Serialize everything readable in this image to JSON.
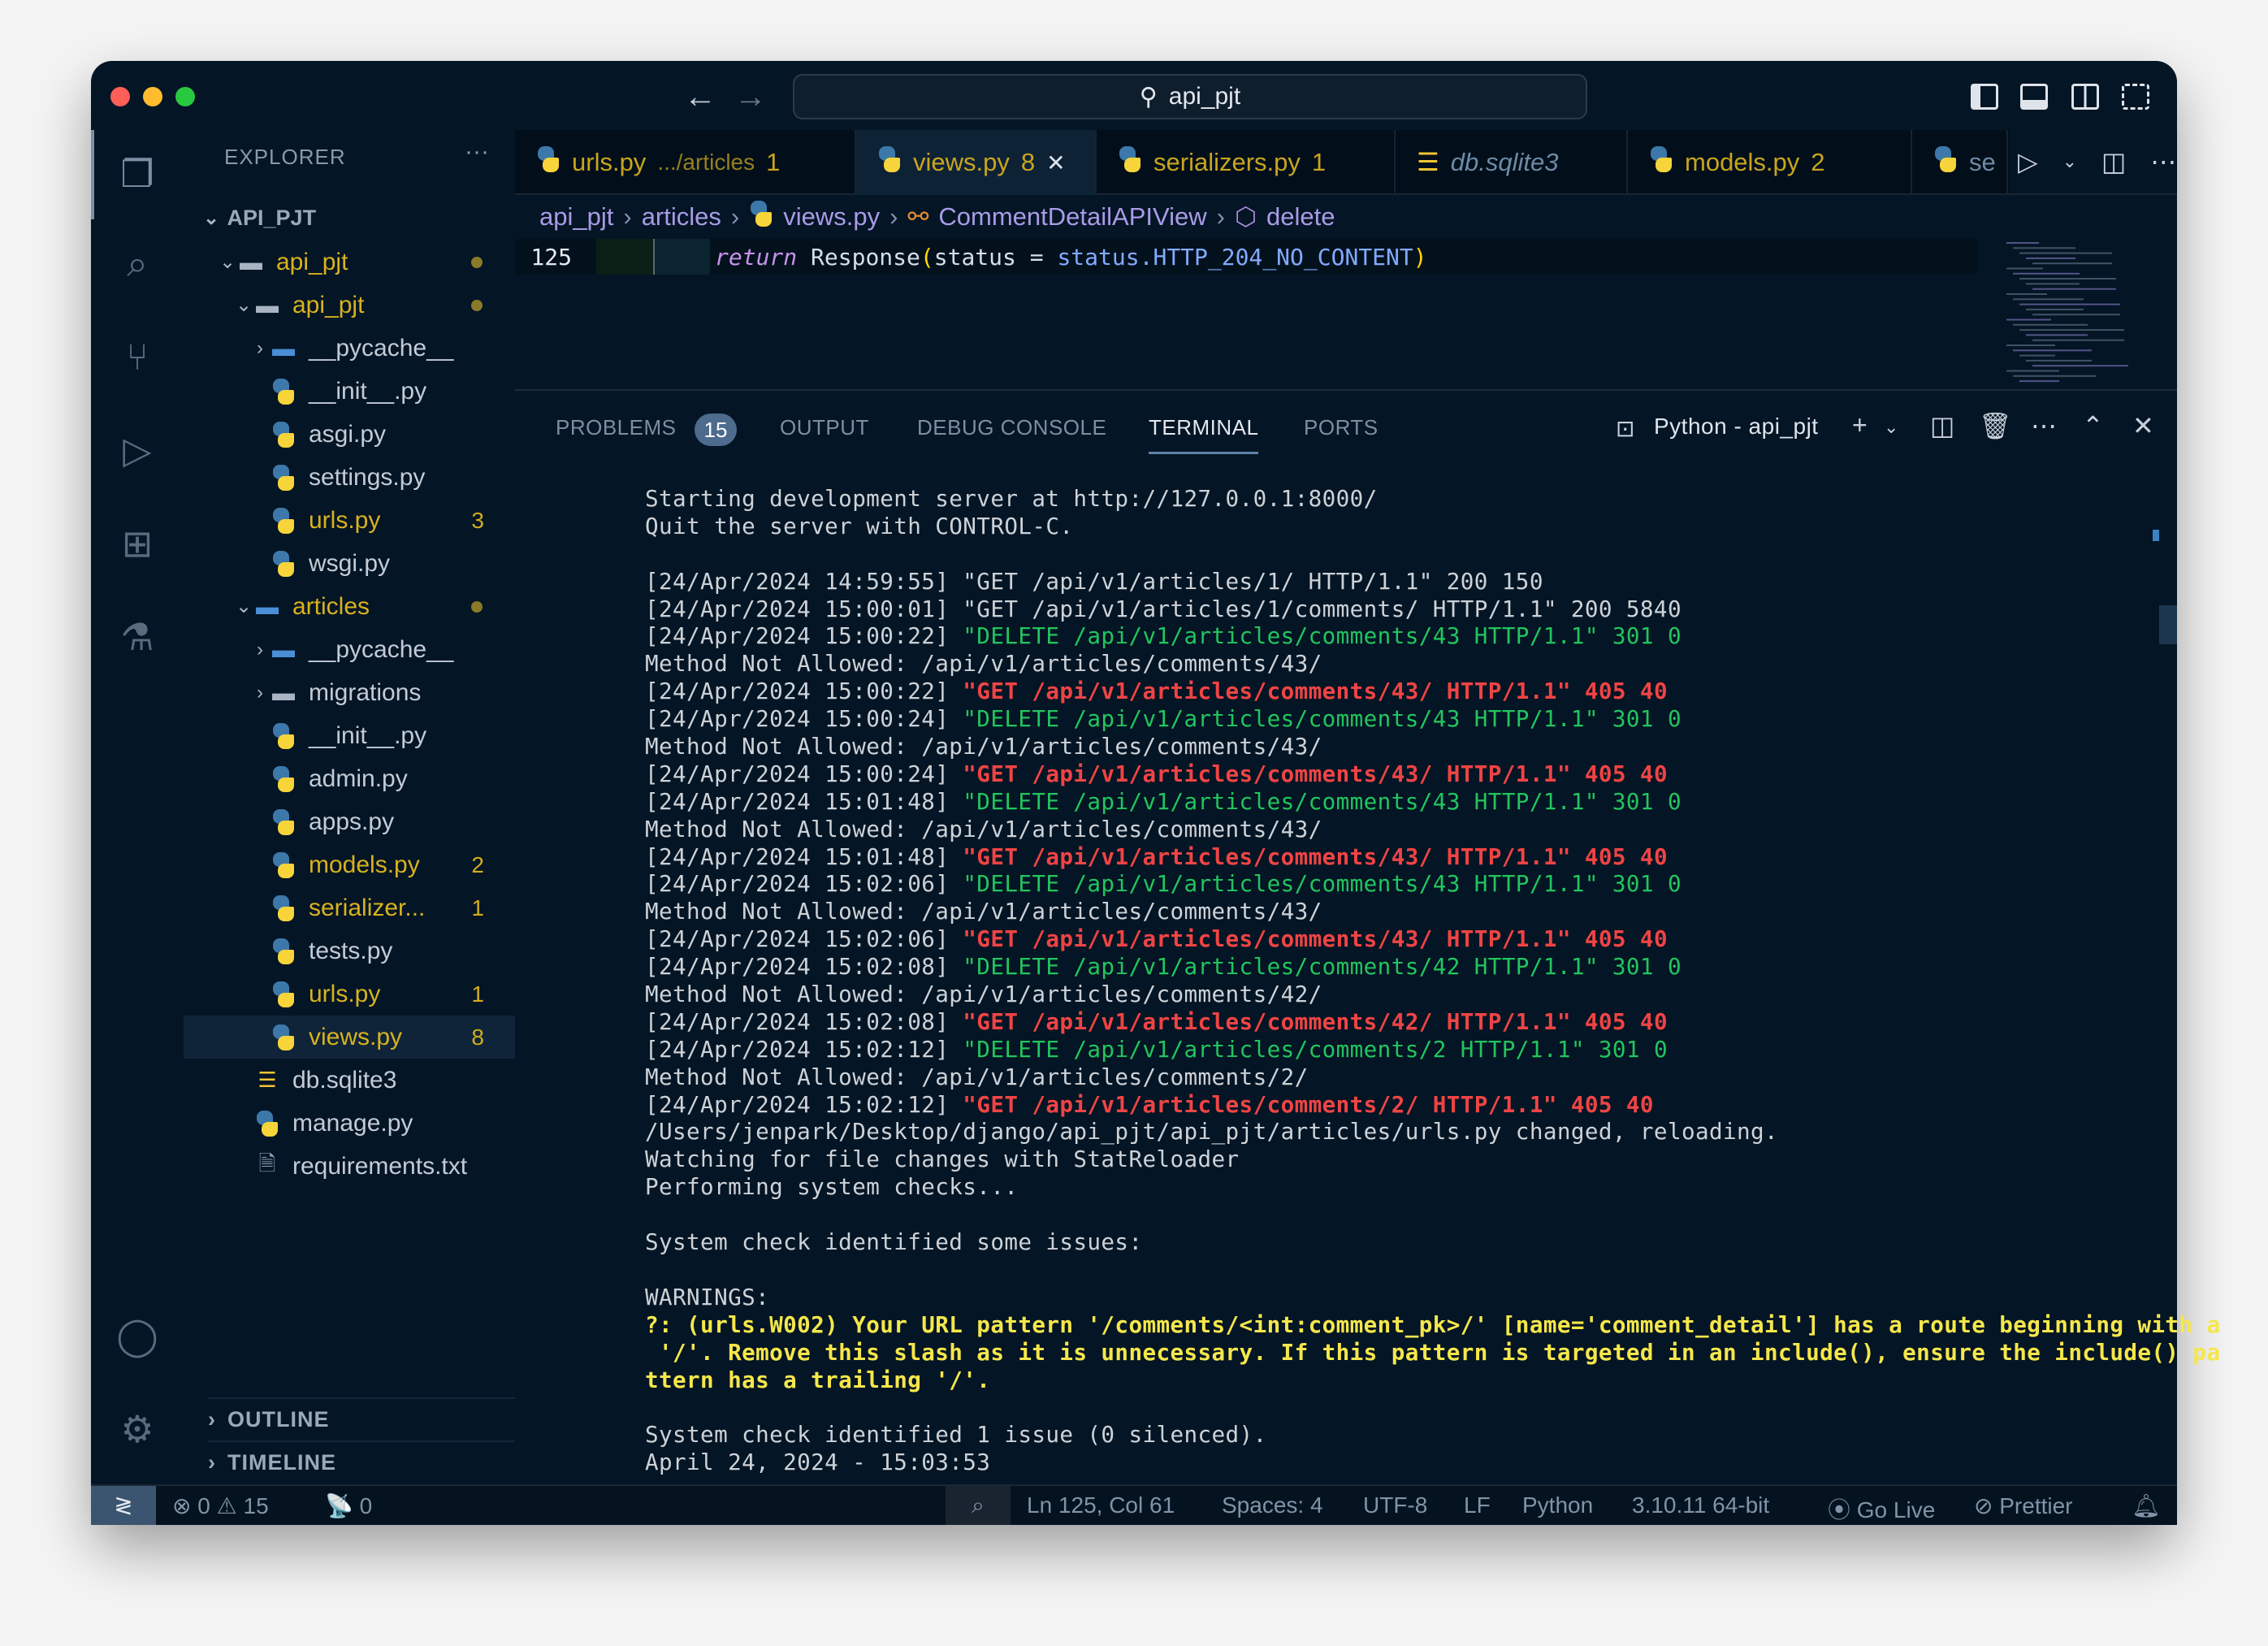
{
  "window": {
    "search": "api_pjt",
    "colors": {
      "close": "#fe5f57",
      "min": "#febc2e",
      "max": "#28c840"
    }
  },
  "sidebar": {
    "title": "EXPLORER",
    "more": "···",
    "root": "API_PJT",
    "items": [
      {
        "label": "api_pjt",
        "level": 1,
        "type": "folder-open",
        "color": "yellow",
        "dot": true
      },
      {
        "label": "api_pjt",
        "level": 2,
        "type": "folder-open",
        "color": "yellow",
        "dot": true
      },
      {
        "label": "__pycache__",
        "level": 3,
        "type": "folder-closed-py"
      },
      {
        "label": "__init__.py",
        "level": 3,
        "type": "py"
      },
      {
        "label": "asgi.py",
        "level": 3,
        "type": "py"
      },
      {
        "label": "settings.py",
        "level": 3,
        "type": "py"
      },
      {
        "label": "urls.py",
        "level": 3,
        "type": "py",
        "color": "yellow",
        "badge": "3"
      },
      {
        "label": "wsgi.py",
        "level": 3,
        "type": "py"
      },
      {
        "label": "articles",
        "level": 2,
        "type": "folder-open-py",
        "color": "yellow",
        "dot": true
      },
      {
        "label": "__pycache__",
        "level": 3,
        "type": "folder-closed-py"
      },
      {
        "label": "migrations",
        "level": 3,
        "type": "folder-closed"
      },
      {
        "label": "__init__.py",
        "level": 3,
        "type": "py"
      },
      {
        "label": "admin.py",
        "level": 3,
        "type": "py"
      },
      {
        "label": "apps.py",
        "level": 3,
        "type": "py"
      },
      {
        "label": "models.py",
        "level": 3,
        "type": "py",
        "color": "yellow",
        "badge": "2"
      },
      {
        "label": "serializer...",
        "level": 3,
        "type": "py",
        "color": "yellow",
        "badge": "1"
      },
      {
        "label": "tests.py",
        "level": 3,
        "type": "py"
      },
      {
        "label": "urls.py",
        "level": 3,
        "type": "py",
        "color": "yellow",
        "badge": "1"
      },
      {
        "label": "views.py",
        "level": 3,
        "type": "py",
        "color": "yellow",
        "badge": "8",
        "selected": true
      },
      {
        "label": "db.sqlite3",
        "level": 2,
        "type": "db"
      },
      {
        "label": "manage.py",
        "level": 2,
        "type": "py"
      },
      {
        "label": "requirements.txt",
        "level": 2,
        "type": "txt"
      }
    ],
    "outline": "OUTLINE",
    "timeline": "TIMELINE"
  },
  "tabs": [
    {
      "name": "urls.py",
      "desc": ".../articles",
      "badge": "1",
      "icon": "python-icon"
    },
    {
      "name": "views.py",
      "badge": "8",
      "icon": "python-icon",
      "active": true
    },
    {
      "name": "serializers.py",
      "badge": "1",
      "icon": "python-icon"
    },
    {
      "name": "db.sqlite3",
      "icon": "database-icon",
      "italic": true
    },
    {
      "name": "models.py",
      "badge": "2",
      "icon": "python-icon"
    },
    {
      "name": "se",
      "icon": "python-icon"
    }
  ],
  "breadcrumb": [
    "api_pjt",
    "articles",
    "views.py",
    "CommentDetailAPIView",
    "delete"
  ],
  "editor": {
    "line_number": "125",
    "code": [
      {
        "t": "return",
        "c": "kw"
      },
      {
        "t": " Response",
        "c": "fn"
      },
      {
        "t": "(",
        "c": "par"
      },
      {
        "t": "status = ",
        "c": "fn"
      },
      {
        "t": "status.HTTP_204_NO_CONTENT",
        "c": "const"
      },
      {
        "t": ")",
        "c": "par"
      }
    ]
  },
  "panel": {
    "tabs": [
      "PROBLEMS",
      "OUTPUT",
      "DEBUG CONSOLE",
      "TERMINAL",
      "PORTS"
    ],
    "problems_count": "15",
    "active": "TERMINAL",
    "terminal_name": "Python - api_pjt"
  },
  "terminal": {
    "colors": {
      "default": "#cdd2d7",
      "green": "#22c55e",
      "red": "#ef4444",
      "yellow": "#f5e74a"
    },
    "lines": [
      [
        [
          "Starting development server at http://127.0.0.1:8000/",
          ""
        ]
      ],
      [
        [
          "Quit the server with CONTROL-C.",
          ""
        ]
      ],
      [],
      [
        [
          "[24/Apr/2024 14:59:55] \"GET /api/v1/articles/1/ HTTP/1.1\" 200 150",
          ""
        ]
      ],
      [
        [
          "[24/Apr/2024 15:00:01] \"GET /api/v1/articles/1/comments/ HTTP/1.1\" 200 5840",
          ""
        ]
      ],
      [
        [
          "[24/Apr/2024 15:00:22] ",
          ""
        ],
        [
          "\"DELETE /api/v1/articles/comments/43 HTTP/1.1\" 301 0",
          "green"
        ]
      ],
      [
        [
          "Method Not Allowed: /api/v1/articles/comments/43/",
          ""
        ]
      ],
      [
        [
          "[24/Apr/2024 15:00:22] ",
          ""
        ],
        [
          "\"GET /api/v1/articles/comments/43/ HTTP/1.1\" 405 40",
          "red"
        ]
      ],
      [
        [
          "[24/Apr/2024 15:00:24] ",
          ""
        ],
        [
          "\"DELETE /api/v1/articles/comments/43 HTTP/1.1\" 301 0",
          "green"
        ]
      ],
      [
        [
          "Method Not Allowed: /api/v1/articles/comments/43/",
          ""
        ]
      ],
      [
        [
          "[24/Apr/2024 15:00:24] ",
          ""
        ],
        [
          "\"GET /api/v1/articles/comments/43/ HTTP/1.1\" 405 40",
          "red"
        ]
      ],
      [
        [
          "[24/Apr/2024 15:01:48] ",
          ""
        ],
        [
          "\"DELETE /api/v1/articles/comments/43 HTTP/1.1\" 301 0",
          "green"
        ]
      ],
      [
        [
          "Method Not Allowed: /api/v1/articles/comments/43/",
          ""
        ]
      ],
      [
        [
          "[24/Apr/2024 15:01:48] ",
          ""
        ],
        [
          "\"GET /api/v1/articles/comments/43/ HTTP/1.1\" 405 40",
          "red"
        ]
      ],
      [
        [
          "[24/Apr/2024 15:02:06] ",
          ""
        ],
        [
          "\"DELETE /api/v1/articles/comments/43 HTTP/1.1\" 301 0",
          "green"
        ]
      ],
      [
        [
          "Method Not Allowed: /api/v1/articles/comments/43/",
          ""
        ]
      ],
      [
        [
          "[24/Apr/2024 15:02:06] ",
          ""
        ],
        [
          "\"GET /api/v1/articles/comments/43/ HTTP/1.1\" 405 40",
          "red"
        ]
      ],
      [
        [
          "[24/Apr/2024 15:02:08] ",
          ""
        ],
        [
          "\"DELETE /api/v1/articles/comments/42 HTTP/1.1\" 301 0",
          "green"
        ]
      ],
      [
        [
          "Method Not Allowed: /api/v1/articles/comments/42/",
          ""
        ]
      ],
      [
        [
          "[24/Apr/2024 15:02:08] ",
          ""
        ],
        [
          "\"GET /api/v1/articles/comments/42/ HTTP/1.1\" 405 40",
          "red"
        ]
      ],
      [
        [
          "[24/Apr/2024 15:02:12] ",
          ""
        ],
        [
          "\"DELETE /api/v1/articles/comments/2 HTTP/1.1\" 301 0",
          "green"
        ]
      ],
      [
        [
          "Method Not Allowed: /api/v1/articles/comments/2/",
          ""
        ]
      ],
      [
        [
          "[24/Apr/2024 15:02:12] ",
          ""
        ],
        [
          "\"GET /api/v1/articles/comments/2/ HTTP/1.1\" 405 40",
          "red"
        ]
      ],
      [
        [
          "/Users/jenpark/Desktop/django/api_pjt/api_pjt/articles/urls.py changed, reloading.",
          ""
        ]
      ],
      [
        [
          "Watching for file changes with StatReloader",
          ""
        ]
      ],
      [
        [
          "Performing system checks...",
          ""
        ]
      ],
      [],
      [
        [
          "System check identified some issues:",
          ""
        ]
      ],
      [],
      [
        [
          "WARNINGS:",
          ""
        ]
      ],
      [
        [
          "?: (urls.W002) Your URL pattern '/comments/<int:comment_pk>/' [name='comment_detail'] has a route beginning with a",
          "yellow"
        ]
      ],
      [
        [
          " '/'. Remove this slash as it is unnecessary. If this pattern is targeted in an include(), ensure the include() pa",
          "yellow"
        ]
      ],
      [
        [
          "ttern has a trailing '/'.",
          "yellow"
        ]
      ],
      [],
      [
        [
          "System check identified 1 issue (0 silenced).",
          ""
        ]
      ],
      [
        [
          "April 24, 2024 - 15:03:53",
          ""
        ]
      ]
    ]
  },
  "status": {
    "errors": "0",
    "warnings": "15",
    "ports": "0",
    "position": "Ln 125, Col 61",
    "spaces": "Spaces: 4",
    "encoding": "UTF-8",
    "eol": "LF",
    "language": "Python",
    "interpreter": "3.10.11 64-bit",
    "golive": "Go Live",
    "prettier": "Prettier"
  }
}
